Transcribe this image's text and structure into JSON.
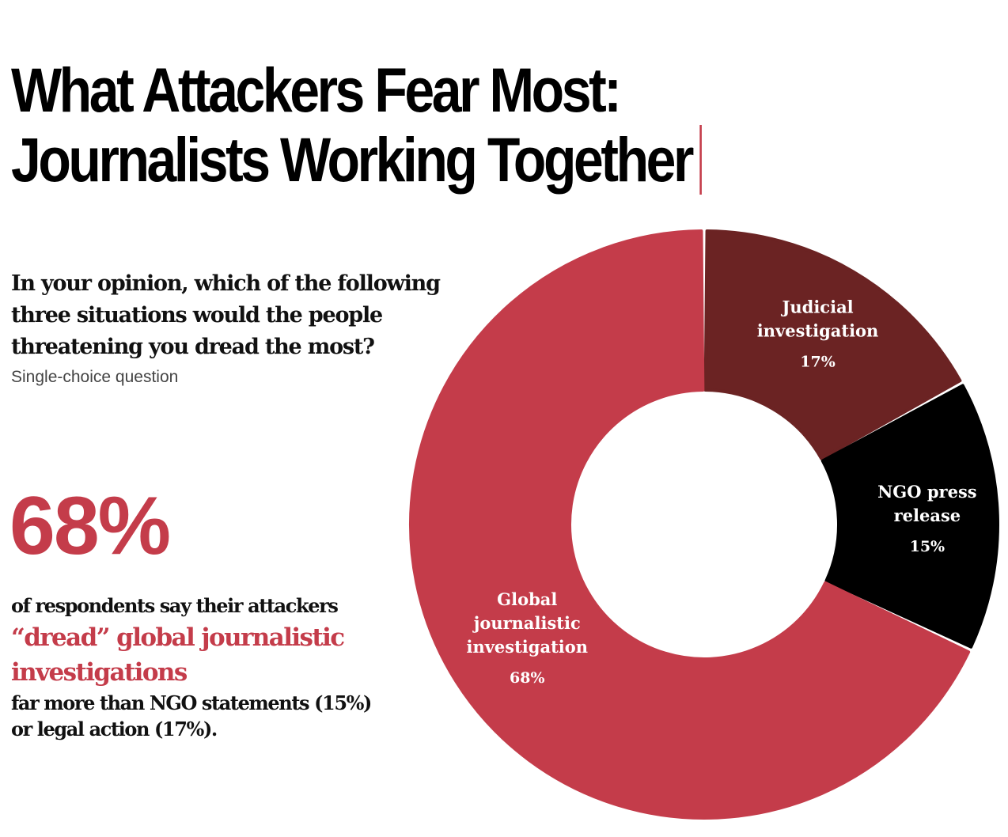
{
  "header": {
    "title_line1": "What Attackers Fear Most:",
    "title_line2": "Journalists Working Together"
  },
  "question": {
    "text": "In your opinion, which of the following three situations would the people threatening you dread the most?",
    "type": "Single-choice question"
  },
  "highlight": {
    "stat": "68%",
    "lead": "of respondents say their attackers",
    "emphasis": "“dread” global journalistic investigations",
    "tail": "far more than NGO statements (15%) or legal action (17%)."
  },
  "colors": {
    "accent": "#c43c4a",
    "judicial": "#6b2323",
    "ngo": "#000000"
  },
  "chart_data": {
    "type": "pie",
    "donut": true,
    "slices": [
      {
        "label": "Judicial investigation",
        "lines": [
          "Judicial",
          "investigation"
        ],
        "value": 17,
        "value_label": "17%",
        "color": "#6b2323"
      },
      {
        "label": "NGO press release",
        "lines": [
          "NGO press",
          "release"
        ],
        "value": 15,
        "value_label": "15%",
        "color": "#000000"
      },
      {
        "label": "Global journalistic investigation",
        "lines": [
          "Global",
          "journalistic",
          "investigation"
        ],
        "value": 68,
        "value_label": "68%",
        "color": "#c43c4a"
      }
    ]
  }
}
